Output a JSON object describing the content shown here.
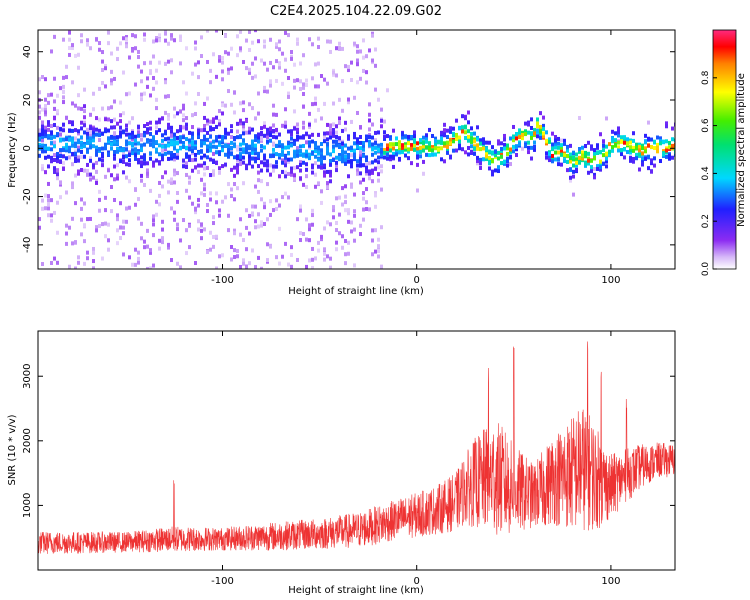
{
  "figure": {
    "title": "C2E4.2025.104.22.09.G02"
  },
  "colors": {
    "axis": "#000000",
    "snr_line": "#ee3333",
    "background": "#ffffff"
  },
  "chart_data": [
    {
      "type": "heatmap",
      "xlabel": "Height of straight line (km)",
      "ylabel": "Frequency (Hz)",
      "xlim": [
        -195,
        133
      ],
      "ylim": [
        -50,
        49
      ],
      "xticks": [
        -100,
        0,
        100
      ],
      "xtick_labels": [
        "-100",
        "0",
        "100"
      ],
      "yticks": [
        -40,
        -20,
        0,
        20,
        40
      ],
      "ytick_labels": [
        "-40",
        "-20",
        "0",
        "20",
        "40"
      ],
      "colorbar": {
        "label": "Normalized spectral amplitude",
        "range": [
          0,
          1
        ],
        "ticks": [
          0.0,
          0.2,
          0.4,
          0.6,
          0.8
        ],
        "tick_labels": [
          "0.0",
          "0.2",
          "0.4",
          "0.6",
          "0.8"
        ],
        "colormap": "rainbow (white-violet-blue-cyan-green-yellow-red-magenta)"
      },
      "ridge_center_hz": {
        "x": [
          -195,
          -150,
          -100,
          -60,
          -40,
          -20,
          -10,
          0,
          10,
          15,
          20,
          25,
          30,
          35,
          40,
          45,
          50,
          55,
          60,
          62,
          65,
          70,
          75,
          80,
          85,
          90,
          95,
          100,
          105,
          110,
          115,
          120,
          125,
          133
        ],
        "y": [
          2,
          1,
          1,
          -1,
          -2,
          0,
          1,
          1,
          0,
          1,
          4,
          7,
          2,
          -2,
          -5,
          -3,
          3,
          6,
          3,
          10,
          6,
          -2,
          -1,
          -6,
          -3,
          -5,
          -4,
          1,
          2,
          1,
          -1,
          0,
          0,
          1
        ]
      },
      "notes": "Broadband noise scattered across full frequency range for heights below about -18 km; concentrated ridge near 0 Hz above."
    },
    {
      "type": "line",
      "xlabel": "Height of straight line (km)",
      "ylabel": "SNR (10 * v/v)",
      "xlim": [
        -195,
        133
      ],
      "ylim": [
        0,
        3700
      ],
      "xticks": [
        -100,
        0,
        100
      ],
      "xtick_labels": [
        "-100",
        "0",
        "100"
      ],
      "yticks": [
        1000,
        2000,
        3000
      ],
      "ytick_labels": [
        "1000",
        "2000",
        "3000"
      ],
      "series": [
        {
          "envelope_x": [
            -195,
            -150,
            -125,
            -100,
            -75,
            -50,
            -30,
            -20,
            -10,
            0,
            10,
            20,
            25,
            30,
            35,
            40,
            45,
            50,
            55,
            60,
            65,
            70,
            75,
            80,
            85,
            90,
            95,
            100,
            105,
            110,
            115,
            120,
            125,
            133
          ],
          "mean": [
            420,
            430,
            480,
            480,
            520,
            560,
            620,
            700,
            780,
            850,
            930,
            1050,
            1250,
            1350,
            1400,
            1450,
            1350,
            1250,
            1200,
            1150,
            1250,
            1400,
            1450,
            1500,
            1600,
            1500,
            1350,
            1300,
            1400,
            1500,
            1600,
            1650,
            1700,
            1700
          ],
          "spread": [
            180,
            160,
            200,
            180,
            220,
            240,
            280,
            300,
            320,
            350,
            380,
            450,
            550,
            700,
            800,
            900,
            850,
            700,
            600,
            500,
            600,
            700,
            800,
            900,
            1000,
            900,
            700,
            500,
            450,
            400,
            350,
            300,
            280,
            250
          ],
          "peaks": [
            {
              "x": -125,
              "y": 1450
            },
            {
              "x": 37,
              "y": 3200
            },
            {
              "x": 50,
              "y": 3500
            },
            {
              "x": 88,
              "y": 3700
            },
            {
              "x": 95,
              "y": 3300
            },
            {
              "x": 108,
              "y": 2700
            }
          ]
        }
      ]
    }
  ]
}
